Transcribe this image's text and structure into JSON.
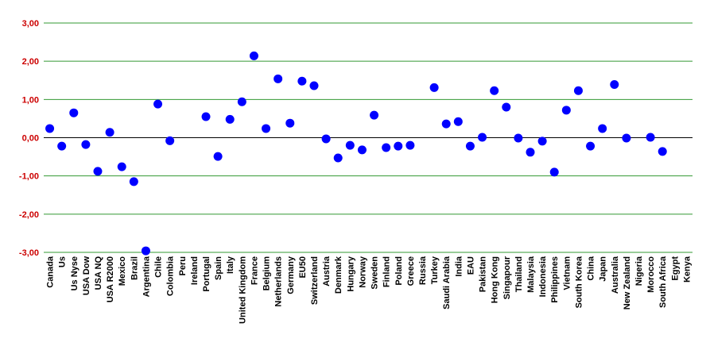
{
  "chart_data": {
    "type": "scatter",
    "categories": [
      "Canada",
      "Us",
      "Us Nyse",
      "USA Dow",
      "USA NQ",
      "USA R2000",
      "Mexico",
      "Brazil",
      "Argentina",
      "Chile",
      "Colombia",
      "Peru",
      "Ireland",
      "Portugal",
      "Spain",
      "Italy",
      "United Kingdom",
      "France",
      "Belgium",
      "Netherlands",
      "Germany",
      "EU50",
      "Switzerland",
      "Austria",
      "Denmark",
      "Hungary",
      "Norway",
      "Sweden",
      "Finland",
      "Poland",
      "Greece",
      "Russia",
      "Turkey",
      "Saudi Arabia",
      "India",
      "EAU",
      "Pakistan",
      "Hong Kong",
      "Singapour",
      "Thailand",
      "Malaysia",
      "Indonesia",
      "Philippines",
      "Vietnam",
      "South Korea",
      "China",
      "Japan",
      "Australia",
      "New Zealand",
      "Nigeria",
      "Morocco",
      "South Africa",
      "Egypt",
      "Kenya"
    ],
    "values": [
      0.24,
      -0.22,
      0.65,
      -0.18,
      -0.88,
      0.14,
      -0.76,
      -1.15,
      -2.96,
      0.88,
      -0.08,
      null,
      null,
      0.55,
      -0.49,
      0.48,
      0.94,
      2.14,
      0.24,
      1.54,
      0.38,
      1.48,
      1.36,
      -0.03,
      -0.53,
      -0.2,
      -0.32,
      0.59,
      -0.26,
      -0.22,
      -0.2,
      null,
      1.31,
      0.36,
      0.42,
      -0.22,
      0.01,
      1.23,
      0.8,
      -0.01,
      -0.38,
      -0.09,
      -0.9,
      0.72,
      1.23,
      -0.22,
      0.24,
      1.39,
      -0.01,
      null,
      0.01,
      -0.36,
      null,
      null
    ],
    "color": "#0000ff",
    "ylim": [
      -3,
      3
    ],
    "yticks": [
      {
        "value": -3,
        "label": "-3,00"
      },
      {
        "value": -2,
        "label": "-2,00"
      },
      {
        "value": -1,
        "label": "-1,00"
      },
      {
        "value": 0,
        "label": "0,00"
      },
      {
        "value": 1,
        "label": "1,00"
      },
      {
        "value": 2,
        "label": "2,00"
      },
      {
        "value": 3,
        "label": "3,00"
      }
    ],
    "grid": true,
    "grid_color": "#339933",
    "tick_label_color": "#cc0000"
  }
}
